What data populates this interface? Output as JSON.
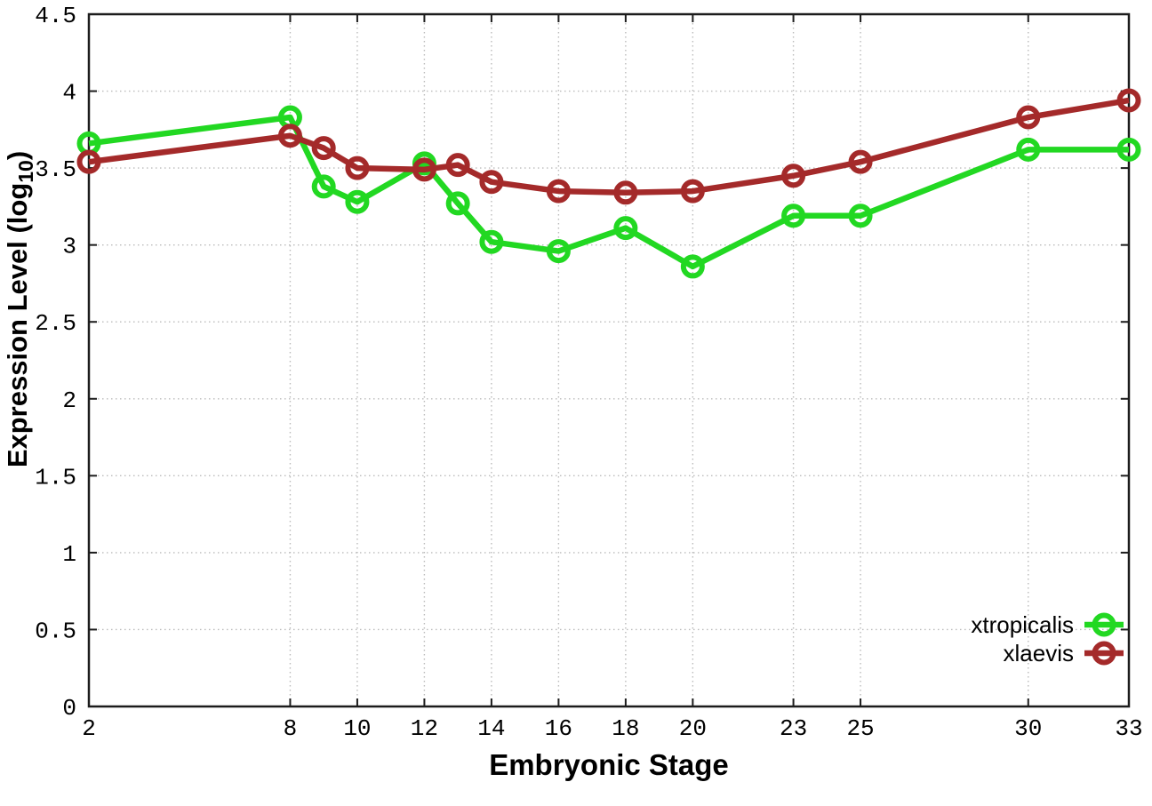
{
  "chart_data": {
    "type": "line",
    "title": "",
    "xlabel": "Embryonic Stage",
    "ylabel": "Expression Level (log10)",
    "ylabel_parts": [
      {
        "text": "Expression Level (log",
        "sub": false
      },
      {
        "text": "10",
        "sub": true
      },
      {
        "text": ")",
        "sub": false
      }
    ],
    "x": [
      2,
      8,
      9,
      10,
      12,
      13,
      14,
      16,
      18,
      20,
      23,
      25,
      30,
      33
    ],
    "series": [
      {
        "name": "xtropicalis",
        "color": "#22d822",
        "values": [
          3.66,
          3.83,
          3.38,
          3.28,
          3.53,
          3.27,
          3.02,
          2.96,
          3.11,
          2.86,
          3.19,
          3.19,
          3.62,
          3.62
        ]
      },
      {
        "name": "xlaevis",
        "color": "#a42a2a",
        "values": [
          3.54,
          3.71,
          3.63,
          3.5,
          3.49,
          3.52,
          3.41,
          3.35,
          3.34,
          3.35,
          3.45,
          3.54,
          3.83,
          3.94
        ]
      }
    ],
    "xlim": [
      2,
      33
    ],
    "ylim": [
      0,
      4.5
    ],
    "x_ticks": [
      {
        "value": 2,
        "label": "2"
      },
      {
        "value": 8,
        "label": "8"
      },
      {
        "value": 10,
        "label": "10"
      },
      {
        "value": 12,
        "label": "12"
      },
      {
        "value": 14,
        "label": "14"
      },
      {
        "value": 16,
        "label": "16"
      },
      {
        "value": 18,
        "label": "18"
      },
      {
        "value": 20,
        "label": "20"
      },
      {
        "value": 23,
        "label": "23"
      },
      {
        "value": 25,
        "label": "25"
      },
      {
        "value": 30,
        "label": "30"
      },
      {
        "value": 33,
        "label": "33"
      }
    ],
    "y_ticks": [
      {
        "value": 0,
        "label": "0"
      },
      {
        "value": 0.5,
        "label": "0.5"
      },
      {
        "value": 1,
        "label": "1"
      },
      {
        "value": 1.5,
        "label": "1.5"
      },
      {
        "value": 2,
        "label": "2"
      },
      {
        "value": 2.5,
        "label": "2.5"
      },
      {
        "value": 3,
        "label": "3"
      },
      {
        "value": 3.5,
        "label": "3.5"
      },
      {
        "value": 4,
        "label": "4"
      },
      {
        "value": 4.5,
        "label": "4.5"
      }
    ],
    "grid": true,
    "legend_position": "bottom-right",
    "legend_entries": [
      "xtropicalis",
      "xlaevis"
    ],
    "colors": {
      "background": "#ffffff",
      "grid": "#bbbbbb",
      "axis": "#1c1c1c",
      "text": "#000000",
      "xtropicalis": "#22d822",
      "xlaevis": "#a42a2a"
    },
    "marker": "open-circle"
  }
}
